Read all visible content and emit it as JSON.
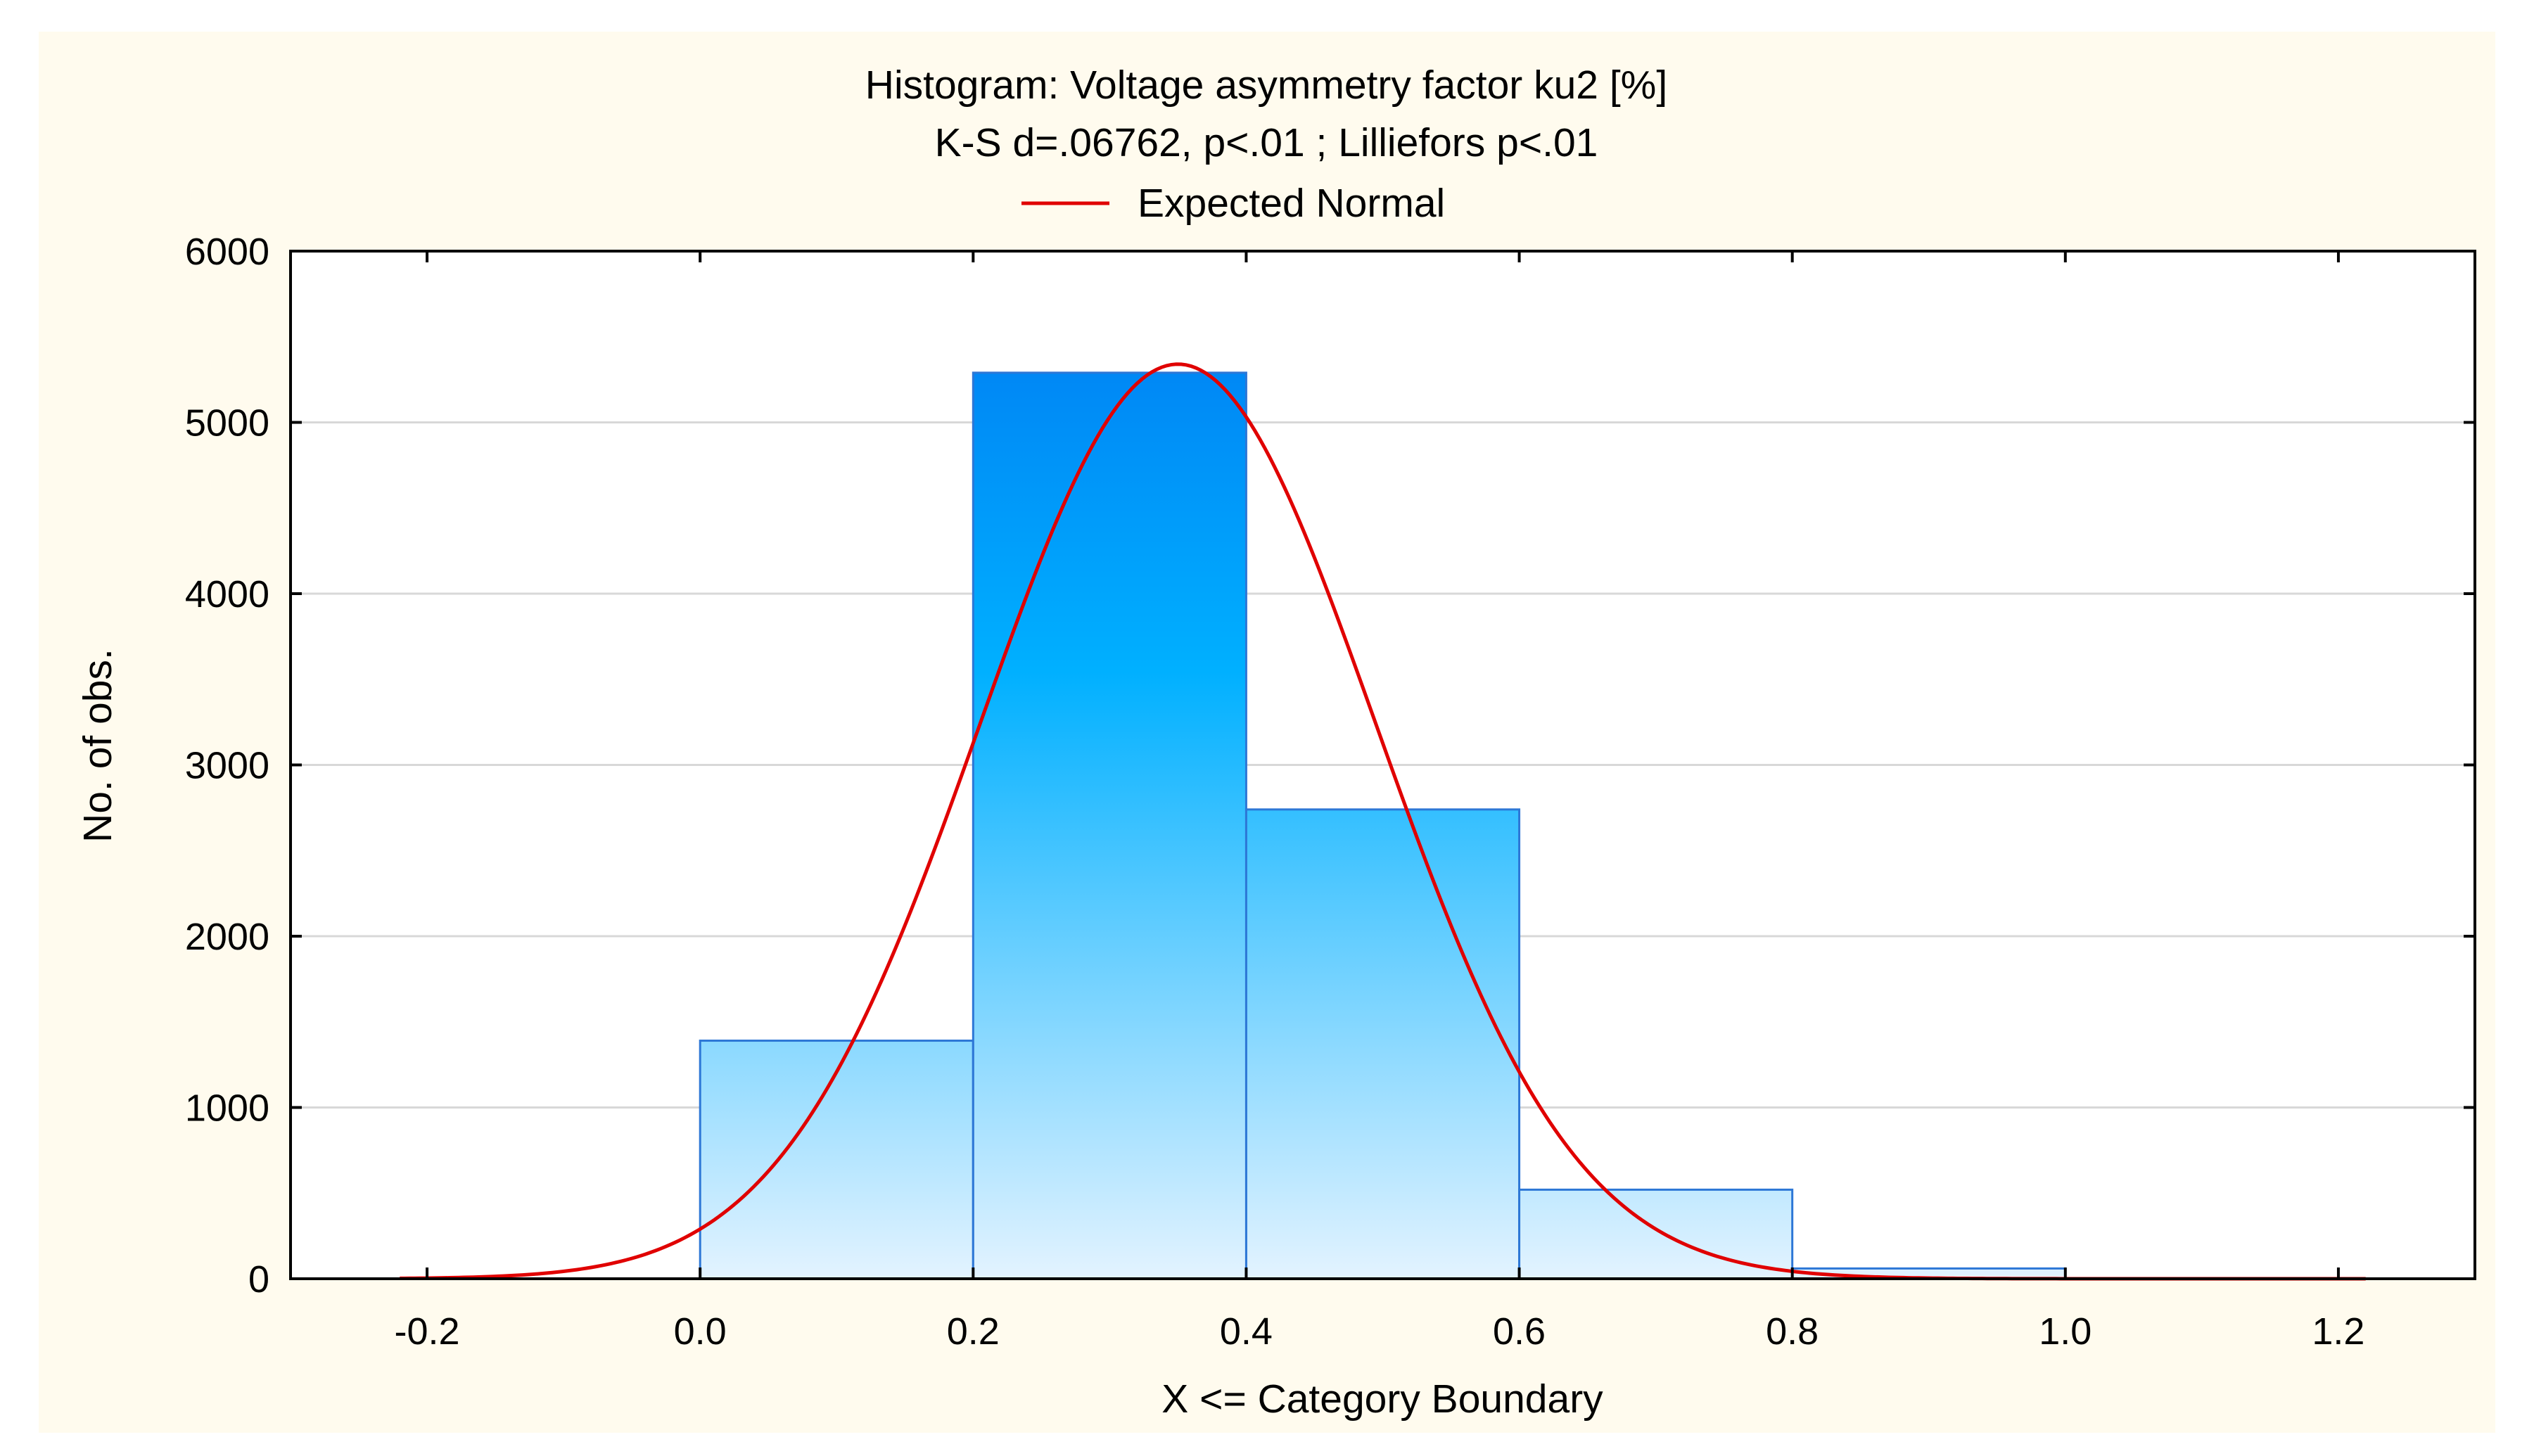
{
  "colors": {
    "background": "#fffbee",
    "plot_bg": "#ffffff",
    "bar_top": "#0088f5",
    "bar_mid": "#00b0ff",
    "bar_bottom": "#e3f3ff",
    "bar_stroke": "#2d77d6",
    "curve": "#e00000",
    "grid": "#d8d8d8",
    "axis": "#000000"
  },
  "chart_data": {
    "type": "bar",
    "title": "Histogram: Voltage asymmetry factor ku2 [%]",
    "subtitle": "K-S d=.06762, p<.01 ; Lilliefors p<.01",
    "legend": [
      {
        "name": "Expected Normal",
        "color": "#e00000",
        "placement": "top-center"
      }
    ],
    "xlabel": "X <= Category Boundary",
    "ylabel": "No. of obs.",
    "xlim": [
      -0.3,
      1.3
    ],
    "ylim": [
      0,
      6000
    ],
    "x_ticks": [
      "-0.2",
      "0.0",
      "0.2",
      "0.4",
      "0.6",
      "0.8",
      "1.0",
      "1.2"
    ],
    "x_tick_values": [
      -0.2,
      0.0,
      0.2,
      0.4,
      0.6,
      0.8,
      1.0,
      1.2
    ],
    "y_ticks": [
      "0",
      "1000",
      "2000",
      "3000",
      "4000",
      "5000",
      "6000"
    ],
    "y_tick_values": [
      0,
      1000,
      2000,
      3000,
      4000,
      5000,
      6000
    ],
    "grid": true,
    "bins": [
      {
        "from": 0.0,
        "to": 0.2,
        "count": 1390
      },
      {
        "from": 0.2,
        "to": 0.4,
        "count": 5290
      },
      {
        "from": 0.4,
        "to": 0.6,
        "count": 2740
      },
      {
        "from": 0.6,
        "to": 0.8,
        "count": 520
      },
      {
        "from": 0.8,
        "to": 1.0,
        "count": 60
      }
    ],
    "series": [
      {
        "name": "Expected Normal",
        "type": "line",
        "mean": 0.35,
        "peak": 5340,
        "sd": 0.145,
        "x_range": [
          -0.22,
          1.22
        ]
      }
    ]
  }
}
